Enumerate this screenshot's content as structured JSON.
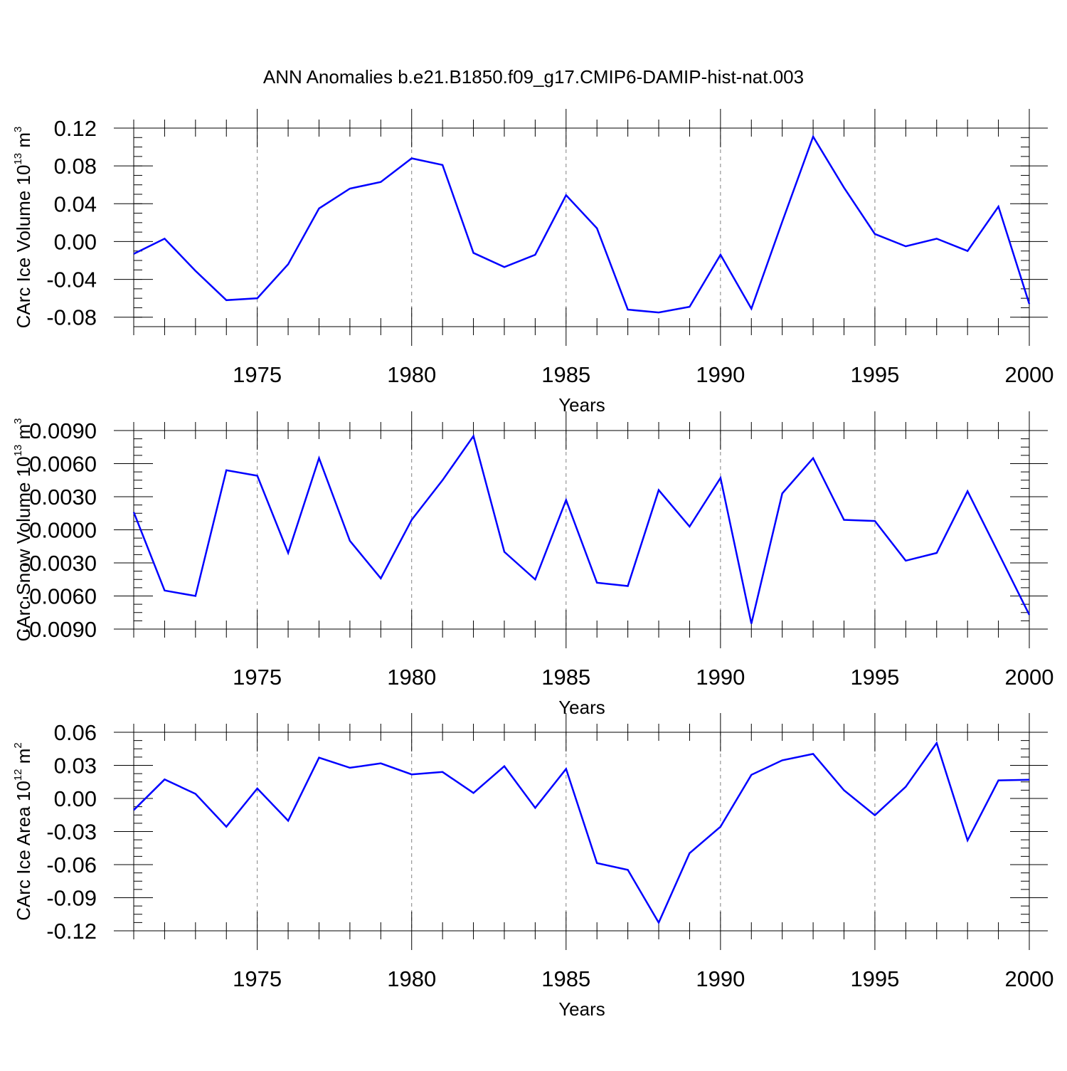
{
  "title": "ANN Anomalies b.e21.B1850.f09_g17.CMIP6-DAMIP-hist-nat.003",
  "colors": {
    "line": "#0000ff",
    "axes": "#000000",
    "grid": "#808080"
  },
  "chart_data": [
    {
      "type": "line",
      "ylabel": {
        "prefix": "CArc Ice Volume 10",
        "exponent": "13",
        "unit": " m",
        "unit_exponent": "3"
      },
      "xlabel": "Years",
      "xlim": [
        1971,
        2000
      ],
      "ylim": [
        -0.09,
        0.12
      ],
      "yticks": [
        0.12,
        0.08,
        0.04,
        0.0,
        -0.04,
        -0.08
      ],
      "ytick_labels": [
        "0.12",
        "0.08",
        "0.04",
        "0.00",
        "-0.04",
        "-0.08"
      ],
      "xticks": [
        1975,
        1980,
        1985,
        1990,
        1995,
        2000
      ],
      "xtick_labels": [
        "1975",
        "1980",
        "1985",
        "1990",
        "1995",
        "2000"
      ],
      "x": [
        1971,
        1972,
        1973,
        1974,
        1975,
        1976,
        1977,
        1978,
        1979,
        1980,
        1981,
        1982,
        1983,
        1984,
        1985,
        1986,
        1987,
        1988,
        1989,
        1990,
        1991,
        1992,
        1993,
        1994,
        1995,
        1996,
        1997,
        1998,
        1999,
        2000
      ],
      "series": [
        {
          "values": [
            -0.013,
            0.003,
            -0.031,
            -0.062,
            -0.06,
            -0.024,
            0.035,
            0.056,
            0.063,
            0.088,
            0.081,
            -0.012,
            -0.027,
            -0.014,
            0.049,
            0.014,
            -0.072,
            -0.075,
            -0.069,
            -0.014,
            -0.071,
            0.021,
            0.111,
            0.057,
            0.008,
            -0.005,
            0.003,
            -0.01,
            0.037,
            -0.066
          ]
        }
      ]
    },
    {
      "type": "line",
      "ylabel": {
        "prefix": "CArc Snow Volume 10",
        "exponent": "13",
        "unit": " m",
        "unit_exponent": "3"
      },
      "xlabel": "Years",
      "xlim": [
        1971,
        2000
      ],
      "ylim": [
        -0.009,
        0.009
      ],
      "yticks": [
        0.009,
        0.006,
        0.003,
        0.0,
        -0.003,
        -0.006,
        -0.009
      ],
      "ytick_labels": [
        "0.0090",
        "0.0060",
        "0.0030",
        "0.0000",
        "-0.0030",
        "-0.0060",
        "-0.0090"
      ],
      "xticks": [
        1975,
        1980,
        1985,
        1990,
        1995,
        2000
      ],
      "xtick_labels": [
        "1975",
        "1980",
        "1985",
        "1990",
        "1995",
        "2000"
      ],
      "x": [
        1971,
        1972,
        1973,
        1974,
        1975,
        1976,
        1977,
        1978,
        1979,
        1980,
        1981,
        1982,
        1983,
        1984,
        1985,
        1986,
        1987,
        1988,
        1989,
        1990,
        1991,
        1992,
        1993,
        1994,
        1995,
        1996,
        1997,
        1998,
        1999,
        2000
      ],
      "series": [
        {
          "values": [
            0.0016,
            -0.0055,
            -0.006,
            0.0054,
            0.0049,
            -0.0021,
            0.0065,
            -0.001,
            -0.0044,
            0.0009,
            0.0045,
            0.0085,
            -0.002,
            -0.0045,
            0.0027,
            -0.0048,
            -0.0051,
            0.0036,
            0.0003,
            0.0047,
            -0.0085,
            0.0033,
            0.0065,
            0.0009,
            0.0008,
            -0.0028,
            -0.0021,
            0.0035,
            -0.0021,
            -0.0077
          ]
        }
      ]
    },
    {
      "type": "line",
      "ylabel": {
        "prefix": "CArc Ice Area 10",
        "exponent": "12",
        "unit": " m",
        "unit_exponent": "2"
      },
      "xlabel": "Years",
      "xlim": [
        1971,
        2000
      ],
      "ylim": [
        -0.12,
        0.06
      ],
      "yticks": [
        0.06,
        0.03,
        0.0,
        -0.03,
        -0.06,
        -0.09,
        -0.12
      ],
      "ytick_labels": [
        "0.06",
        "0.03",
        "0.00",
        "-0.03",
        "-0.06",
        "-0.09",
        "-0.12"
      ],
      "xticks": [
        1975,
        1980,
        1985,
        1990,
        1995,
        2000
      ],
      "xtick_labels": [
        "1975",
        "1980",
        "1985",
        "1990",
        "1995",
        "2000"
      ],
      "x": [
        1971,
        1972,
        1973,
        1974,
        1975,
        1976,
        1977,
        1978,
        1979,
        1980,
        1981,
        1982,
        1983,
        1984,
        1985,
        1986,
        1987,
        1988,
        1989,
        1990,
        1991,
        1992,
        1993,
        1994,
        1995,
        1996,
        1997,
        1998,
        1999,
        2000
      ],
      "series": [
        {
          "values": [
            -0.0105,
            0.0172,
            0.0042,
            -0.0256,
            0.009,
            -0.0202,
            0.037,
            0.0278,
            0.0318,
            0.0218,
            0.024,
            0.005,
            0.0292,
            -0.0085,
            0.0268,
            -0.0586,
            -0.0648,
            -0.1126,
            -0.0496,
            -0.0256,
            0.0214,
            0.0346,
            0.0404,
            0.0074,
            -0.0152,
            0.0106,
            0.0502,
            -0.038,
            0.0164,
            0.017
          ]
        }
      ]
    }
  ]
}
